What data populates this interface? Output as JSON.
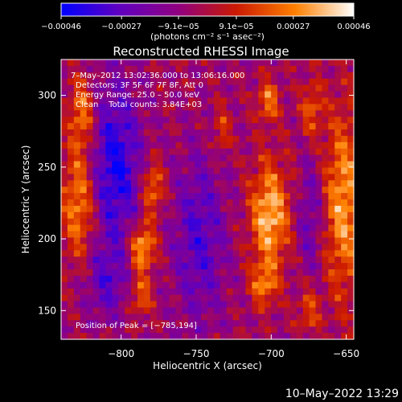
{
  "chart_data": {
    "type": "heatmap",
    "title": "Reconstructed RHESSI Image",
    "xlabel": "Heliocentric X (arcsec)",
    "ylabel": "Heliocentric Y (arcsec)",
    "xlim": [
      -840,
      -645
    ],
    "ylim": [
      130,
      325
    ],
    "x_ticks": [
      -800,
      -750,
      -700,
      -650
    ],
    "x_tick_labels": [
      "−800",
      "−750",
      "−700",
      "−650"
    ],
    "y_ticks": [
      150,
      200,
      250,
      300
    ],
    "y_tick_labels": [
      "150",
      "200",
      "250",
      "300"
    ],
    "colorbar": {
      "ticks": [
        -0.00046,
        -0.00027,
        -9.1e-05,
        9.1e-05,
        0.00027,
        0.00046
      ],
      "tick_labels": [
        "−0.00046",
        "−0.00027",
        "−9.1e−05",
        "9.1e−05",
        "0.00027",
        "0.00046"
      ],
      "range": [
        -0.00046,
        0.00046
      ],
      "unit_text": "(photons cm⁻² s⁻¹ asec⁻²)",
      "colormap": [
        "#0000ff",
        "#6000c0",
        "#900080",
        "#cc1a00",
        "#ff8000",
        "#ffffff"
      ]
    },
    "annotations": {
      "time": "7–May–2012 13:02:36.000 to 13:06:16.000",
      "detectors": "Detectors: 3F 5F 6F 7F 8F, Att 0",
      "energy": "Energy Range: 25.0 – 50.0 keV",
      "clean": "Clean    Total counts: 3.84E+03",
      "peak": "Position of Peak = [−785,194]"
    },
    "peak": {
      "x": -785,
      "y": 194
    },
    "sources": [
      {
        "x": -828,
        "y": 225,
        "w": 8,
        "h": 28,
        "amp": 0.00034
      },
      {
        "x": -826,
        "y": 288,
        "w": 6,
        "h": 18,
        "amp": 0.0003
      },
      {
        "x": -786,
        "y": 194,
        "w": 6,
        "h": 12,
        "amp": 0.00042
      },
      {
        "x": -779,
        "y": 235,
        "w": 5,
        "h": 13,
        "amp": 0.00032
      },
      {
        "x": -787,
        "y": 160,
        "w": 5,
        "h": 10,
        "amp": 0.00026
      },
      {
        "x": -701,
        "y": 216,
        "w": 9,
        "h": 26,
        "amp": 0.00042
      },
      {
        "x": -705,
        "y": 168,
        "w": 6,
        "h": 10,
        "amp": 0.00028
      },
      {
        "x": -702,
        "y": 296,
        "w": 5,
        "h": 10,
        "amp": 0.0003
      },
      {
        "x": -733,
        "y": 275,
        "w": 4,
        "h": 12,
        "amp": 0.0002
      },
      {
        "x": -652,
        "y": 225,
        "w": 9,
        "h": 45,
        "amp": 0.00036
      },
      {
        "x": -673,
        "y": 290,
        "w": 5,
        "h": 14,
        "amp": 0.00024
      },
      {
        "x": -675,
        "y": 150,
        "w": 5,
        "h": 12,
        "amp": 0.00022
      },
      {
        "x": -804,
        "y": 250,
        "w": 12,
        "h": 40,
        "amp": -0.00036
      },
      {
        "x": -748,
        "y": 200,
        "w": 12,
        "h": 40,
        "amp": -0.00025
      },
      {
        "x": -674,
        "y": 215,
        "w": 6,
        "h": 30,
        "amp": -0.00018
      },
      {
        "x": -810,
        "y": 170,
        "w": 10,
        "h": 18,
        "amp": -0.0002
      }
    ]
  },
  "footer": {
    "date_stamp": "10–May–2022 13:29"
  }
}
